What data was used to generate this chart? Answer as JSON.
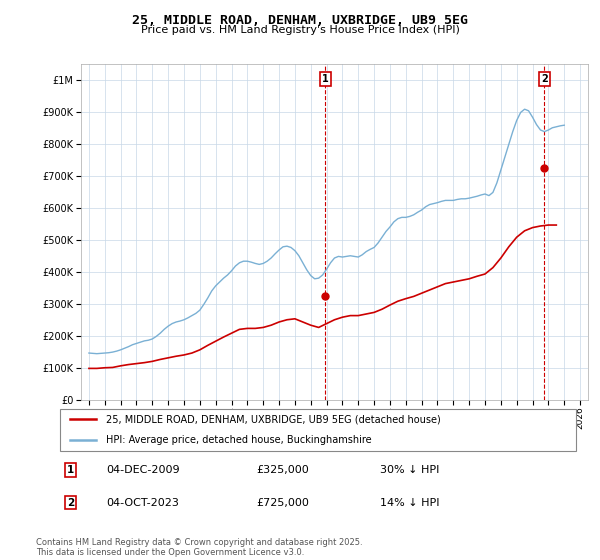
{
  "title": "25, MIDDLE ROAD, DENHAM, UXBRIDGE, UB9 5EG",
  "subtitle": "Price paid vs. HM Land Registry's House Price Index (HPI)",
  "legend_line1": "25, MIDDLE ROAD, DENHAM, UXBRIDGE, UB9 5EG (detached house)",
  "legend_line2": "HPI: Average price, detached house, Buckinghamshire",
  "sale1_date": "04-DEC-2009",
  "sale1_price": 325000,
  "sale1_label": "30% ↓ HPI",
  "sale1_x": 2009.92,
  "sale2_date": "04-OCT-2023",
  "sale2_price": 725000,
  "sale2_label": "14% ↓ HPI",
  "sale2_x": 2023.75,
  "footnote": "Contains HM Land Registry data © Crown copyright and database right 2025.\nThis data is licensed under the Open Government Licence v3.0.",
  "color_red": "#cc0000",
  "color_blue": "#7ab0d4",
  "color_dashed": "#cc0000",
  "ylim": [
    0,
    1050000
  ],
  "xlim": [
    1994.5,
    2026.5
  ],
  "hpi_data": {
    "years": [
      1995.0,
      1995.25,
      1995.5,
      1995.75,
      1996.0,
      1996.25,
      1996.5,
      1996.75,
      1997.0,
      1997.25,
      1997.5,
      1997.75,
      1998.0,
      1998.25,
      1998.5,
      1998.75,
      1999.0,
      1999.25,
      1999.5,
      1999.75,
      2000.0,
      2000.25,
      2000.5,
      2000.75,
      2001.0,
      2001.25,
      2001.5,
      2001.75,
      2002.0,
      2002.25,
      2002.5,
      2002.75,
      2003.0,
      2003.25,
      2003.5,
      2003.75,
      2004.0,
      2004.25,
      2004.5,
      2004.75,
      2005.0,
      2005.25,
      2005.5,
      2005.75,
      2006.0,
      2006.25,
      2006.5,
      2006.75,
      2007.0,
      2007.25,
      2007.5,
      2007.75,
      2008.0,
      2008.25,
      2008.5,
      2008.75,
      2009.0,
      2009.25,
      2009.5,
      2009.75,
      2010.0,
      2010.25,
      2010.5,
      2010.75,
      2011.0,
      2011.25,
      2011.5,
      2011.75,
      2012.0,
      2012.25,
      2012.5,
      2012.75,
      2013.0,
      2013.25,
      2013.5,
      2013.75,
      2014.0,
      2014.25,
      2014.5,
      2014.75,
      2015.0,
      2015.25,
      2015.5,
      2015.75,
      2016.0,
      2016.25,
      2016.5,
      2016.75,
      2017.0,
      2017.25,
      2017.5,
      2017.75,
      2018.0,
      2018.25,
      2018.5,
      2018.75,
      2019.0,
      2019.25,
      2019.5,
      2019.75,
      2020.0,
      2020.25,
      2020.5,
      2020.75,
      2021.0,
      2021.25,
      2021.5,
      2021.75,
      2022.0,
      2022.25,
      2022.5,
      2022.75,
      2023.0,
      2023.25,
      2023.5,
      2023.75,
      2024.0,
      2024.25,
      2024.5,
      2024.75,
      2025.0
    ],
    "values": [
      148000,
      147000,
      146000,
      147000,
      148000,
      149000,
      151000,
      154000,
      158000,
      163000,
      168000,
      174000,
      178000,
      182000,
      186000,
      188000,
      192000,
      200000,
      210000,
      222000,
      232000,
      240000,
      245000,
      248000,
      252000,
      258000,
      265000,
      272000,
      282000,
      300000,
      320000,
      342000,
      358000,
      370000,
      382000,
      392000,
      405000,
      420000,
      430000,
      435000,
      435000,
      432000,
      428000,
      425000,
      428000,
      435000,
      445000,
      458000,
      470000,
      480000,
      482000,
      478000,
      468000,
      452000,
      430000,
      408000,
      390000,
      380000,
      382000,
      392000,
      410000,
      430000,
      445000,
      450000,
      448000,
      450000,
      452000,
      450000,
      448000,
      455000,
      465000,
      472000,
      478000,
      492000,
      510000,
      528000,
      542000,
      558000,
      568000,
      572000,
      572000,
      575000,
      580000,
      588000,
      595000,
      605000,
      612000,
      615000,
      618000,
      622000,
      625000,
      625000,
      625000,
      628000,
      630000,
      630000,
      632000,
      635000,
      638000,
      642000,
      645000,
      640000,
      650000,
      680000,
      720000,
      760000,
      800000,
      840000,
      875000,
      900000,
      910000,
      905000,
      885000,
      862000,
      845000,
      840000,
      845000,
      852000,
      855000,
      858000,
      860000
    ]
  },
  "price_data": {
    "years": [
      1995.0,
      1995.5,
      1996.0,
      1996.5,
      1997.0,
      1997.5,
      1998.0,
      1998.5,
      1999.0,
      1999.5,
      2000.0,
      2000.5,
      2001.0,
      2001.5,
      2002.0,
      2002.5,
      2003.0,
      2003.5,
      2004.0,
      2004.5,
      2005.0,
      2005.5,
      2006.0,
      2006.5,
      2007.0,
      2007.5,
      2008.0,
      2008.5,
      2009.0,
      2009.5,
      2010.0,
      2010.5,
      2011.0,
      2011.5,
      2012.0,
      2012.5,
      2013.0,
      2013.5,
      2014.0,
      2014.5,
      2015.0,
      2015.5,
      2016.0,
      2016.5,
      2017.0,
      2017.5,
      2018.0,
      2018.5,
      2019.0,
      2019.5,
      2020.0,
      2020.5,
      2021.0,
      2021.5,
      2022.0,
      2022.5,
      2023.0,
      2023.5,
      2024.0,
      2024.5
    ],
    "values": [
      100000,
      100000,
      102000,
      103000,
      108000,
      112000,
      115000,
      118000,
      122000,
      128000,
      133000,
      138000,
      142000,
      148000,
      158000,
      172000,
      185000,
      198000,
      210000,
      222000,
      225000,
      225000,
      228000,
      235000,
      245000,
      252000,
      255000,
      245000,
      235000,
      228000,
      240000,
      252000,
      260000,
      265000,
      265000,
      270000,
      275000,
      285000,
      298000,
      310000,
      318000,
      325000,
      335000,
      345000,
      355000,
      365000,
      370000,
      375000,
      380000,
      388000,
      395000,
      415000,
      445000,
      480000,
      510000,
      530000,
      540000,
      545000,
      548000,
      548000
    ]
  }
}
